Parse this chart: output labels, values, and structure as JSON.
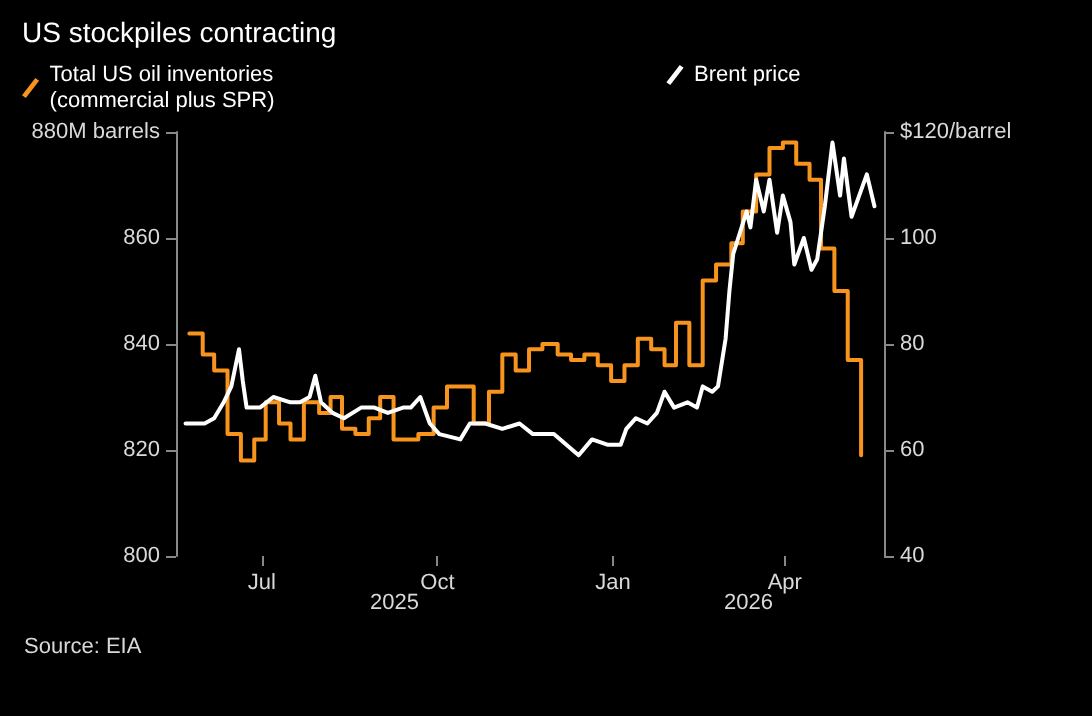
{
  "chart_data": {
    "type": "line",
    "title": "US stockpiles contracting",
    "legend": "top",
    "grid": false,
    "marker": "none",
    "line_style": "solid",
    "xlim": [
      "2025-05-17",
      "2026-05-23"
    ],
    "xticks": [
      {
        "value": "2025-07-01",
        "label": "Jul"
      },
      {
        "value": "2025-10-01",
        "label": "Oct"
      },
      {
        "value": "2026-01-01",
        "label": "Jan"
      },
      {
        "value": "2026-04-01",
        "label": "Apr"
      }
    ],
    "ylim": [
      800,
      880
    ],
    "yticks": [
      800,
      820,
      840,
      860,
      {
        "value": 880,
        "label": "880M barrels"
      }
    ],
    "y2lim": [
      40,
      120
    ],
    "y2ticks": [
      40,
      60,
      80,
      100,
      {
        "value": 120,
        "label": "$120/barrel"
      }
    ],
    "annotations": [
      "Source: EIA",
      "2025",
      "2026"
    ],
    "series": [
      {
        "name": "Total US oil inventories (commercial plus SPR)",
        "type": "step",
        "color": "#f7941d",
        "x": [
          "2025-05-24",
          "2025-05-31",
          "2025-06-06",
          "2025-06-13",
          "2025-06-20",
          "2025-06-27",
          "2025-07-03",
          "2025-07-10",
          "2025-07-16",
          "2025-07-23",
          "2025-07-31",
          "2025-08-06",
          "2025-08-12",
          "2025-08-19",
          "2025-08-26",
          "2025-09-01",
          "2025-09-08",
          "2025-09-21",
          "2025-09-29",
          "2025-10-06",
          "2025-10-20",
          "2025-10-28",
          "2025-11-04",
          "2025-11-11",
          "2025-11-18",
          "2025-11-25",
          "2025-12-03",
          "2025-12-10",
          "2025-12-17",
          "2025-12-24",
          "2025-12-31",
          "2026-01-07",
          "2026-01-14",
          "2026-01-21",
          "2026-01-28",
          "2026-02-03",
          "2026-02-10",
          "2026-02-17",
          "2026-02-24",
          "2026-03-04",
          "2026-03-10",
          "2026-03-17",
          "2026-03-24",
          "2026-03-31",
          "2026-04-07",
          "2026-04-14",
          "2026-04-20",
          "2026-04-27",
          "2026-05-04",
          "2026-05-11"
        ],
        "values": [
          842,
          838,
          835,
          823,
          818,
          822,
          829,
          825,
          822,
          829,
          827,
          830,
          824,
          823,
          826,
          830,
          822,
          823,
          828,
          832,
          825,
          831,
          838,
          835,
          839,
          840,
          838,
          837,
          838,
          836,
          833,
          836,
          841,
          839,
          836,
          844,
          836,
          852,
          855,
          859,
          865,
          872,
          877,
          878,
          874,
          871,
          858,
          850,
          837,
          819
        ]
      },
      {
        "name": "Brent price",
        "type": "line",
        "axis": "y2",
        "color": "#ffffff",
        "x": [
          "2025-05-22",
          "2025-06-01",
          "2025-06-06",
          "2025-06-11",
          "2025-06-15",
          "2025-06-19",
          "2025-06-21",
          "2025-06-23",
          "2025-06-30",
          "2025-07-07",
          "2025-07-16",
          "2025-07-21",
          "2025-07-26",
          "2025-07-29",
          "2025-08-01",
          "2025-08-07",
          "2025-08-13",
          "2025-08-22",
          "2025-08-29",
          "2025-09-05",
          "2025-09-13",
          "2025-09-17",
          "2025-09-22",
          "2025-09-27",
          "2025-10-02",
          "2025-10-13",
          "2025-10-18",
          "2025-10-26",
          "2025-11-04",
          "2025-11-13",
          "2025-11-20",
          "2025-12-01",
          "2025-12-14",
          "2025-12-21",
          "2025-12-29",
          "2026-01-05",
          "2026-01-08",
          "2026-01-13",
          "2026-01-19",
          "2026-01-24",
          "2026-01-28",
          "2026-02-02",
          "2026-02-09",
          "2026-02-14",
          "2026-02-17",
          "2026-02-22",
          "2026-02-25",
          "2026-03-01",
          "2026-03-03",
          "2026-03-05",
          "2026-03-12",
          "2026-03-14",
          "2026-03-17",
          "2026-03-21",
          "2026-03-24",
          "2026-03-28",
          "2026-03-31",
          "2026-04-04",
          "2026-04-06",
          "2026-04-11",
          "2026-04-15",
          "2026-04-18",
          "2026-04-22",
          "2026-04-26",
          "2026-04-30",
          "2026-05-02",
          "2026-05-06",
          "2026-05-10",
          "2026-05-14",
          "2026-05-18"
        ],
        "values": [
          65,
          65,
          66,
          69,
          72,
          79,
          73,
          68,
          68,
          70,
          69,
          69,
          70,
          74,
          69,
          67,
          66,
          68,
          68,
          67,
          68,
          68,
          70,
          65,
          63,
          62,
          65,
          65,
          64,
          65,
          63,
          63,
          59,
          62,
          61,
          61,
          64,
          66,
          65,
          67,
          71,
          68,
          69,
          68,
          72,
          71,
          72,
          81,
          90,
          97,
          105,
          102,
          111,
          105,
          111,
          101,
          108,
          103,
          95,
          100,
          94,
          96,
          106,
          118,
          108,
          115,
          104,
          108,
          112,
          106
        ]
      }
    ]
  }
}
